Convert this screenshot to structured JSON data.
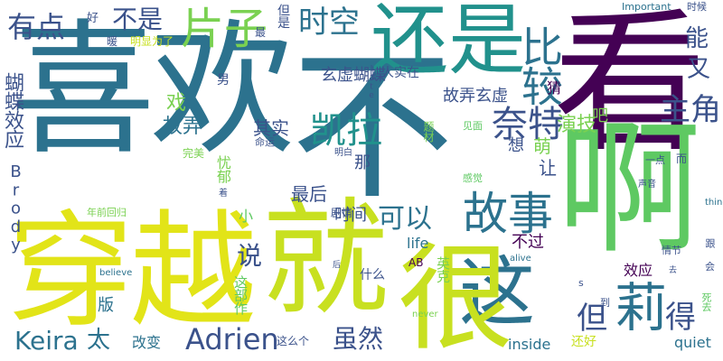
{
  "colors": {
    "background": "#ffffff",
    "palette": [
      "#440154",
      "#3b528b",
      "#2c728e",
      "#21918c",
      "#28ae80",
      "#5ec962",
      "#addc30",
      "#fde725"
    ]
  },
  "words": [
    {
      "text": "喜欢",
      "color": "#2c728e"
    },
    {
      "text": "不",
      "color": "#2c728e"
    },
    {
      "text": "看",
      "color": "#440154"
    },
    {
      "text": "就",
      "color": "#c8e020"
    },
    {
      "text": "穿越",
      "color": "#e2e418"
    },
    {
      "text": "啊",
      "color": "#5ec962"
    },
    {
      "text": "还是",
      "color": "#21918c"
    },
    {
      "text": "这",
      "color": "#2c728e"
    },
    {
      "text": "很",
      "color": "#c8e020"
    },
    {
      "text": "故事",
      "color": "#2c728e"
    },
    {
      "text": "比较",
      "color": "#2c728e"
    },
    {
      "text": "莉",
      "color": "#2c728e"
    },
    {
      "text": "有点",
      "color": "#3b528b"
    },
    {
      "text": "不是",
      "color": "#3b528b"
    },
    {
      "text": "片子",
      "color": "#7ad151"
    },
    {
      "text": "时空",
      "color": "#2c728e"
    },
    {
      "text": "奈特",
      "color": "#3b528b"
    },
    {
      "text": "凯拉",
      "color": "#21918c"
    },
    {
      "text": "Adrien",
      "color": "#3b528b"
    },
    {
      "text": "Keira",
      "color": "#2c728e"
    },
    {
      "text": "主角",
      "color": "#3b528b"
    },
    {
      "text": "可以",
      "color": "#2c728e"
    },
    {
      "text": "得",
      "color": "#3b528b"
    },
    {
      "text": "但",
      "color": "#3b528b"
    },
    {
      "text": "虽然",
      "color": "#3b528b"
    },
    {
      "text": "能",
      "color": "#3b528b"
    },
    {
      "text": "又",
      "color": "#3b528b"
    },
    {
      "text": "说",
      "color": "#3b528b"
    },
    {
      "text": "太",
      "color": "#2c728e"
    },
    {
      "text": "蝴蝶效应",
      "color": "#3b528b"
    },
    {
      "text": "故弄",
      "color": "#2c728e"
    },
    {
      "text": "戏",
      "color": "#7ad151"
    },
    {
      "text": "演技",
      "color": "#7ad151"
    },
    {
      "text": "最后",
      "color": "#3b528b"
    },
    {
      "text": "时间",
      "color": "#3b528b"
    },
    {
      "text": "其实",
      "color": "#3b528b"
    },
    {
      "text": "故弄玄虚",
      "color": "#3b528b"
    },
    {
      "text": "玄虚蝴蝶",
      "color": "#3b528b"
    },
    {
      "text": "让",
      "color": "#3b528b"
    },
    {
      "text": "想",
      "color": "#3b528b"
    },
    {
      "text": "那",
      "color": "#3b528b"
    },
    {
      "text": "萌",
      "color": "#7ad151"
    },
    {
      "text": "吧",
      "color": "#7ad151"
    },
    {
      "text": "猜",
      "color": "#440154"
    },
    {
      "text": "不过",
      "color": "#440154"
    },
    {
      "text": "效应",
      "color": "#440154"
    },
    {
      "text": "quiet",
      "color": "#2c728e"
    },
    {
      "text": "inside",
      "color": "#2c728e"
    },
    {
      "text": "改变",
      "color": "#2c728e"
    },
    {
      "text": "版",
      "color": "#2c728e"
    },
    {
      "text": "这部作",
      "color": "#5ec962"
    },
    {
      "text": "还好",
      "color": "#c8e020"
    },
    {
      "text": "什么",
      "color": "#3b528b"
    },
    {
      "text": "英克",
      "color": "#7ad151"
    },
    {
      "text": "life",
      "color": "#2c728e"
    },
    {
      "text": "AB",
      "color": "#440154"
    },
    {
      "text": "Brody",
      "color": "#3b528b"
    },
    {
      "text": "忧郁",
      "color": "#7ad151"
    },
    {
      "text": "男",
      "color": "#3b528b"
    },
    {
      "text": "人实在",
      "color": "#3b528b"
    },
    {
      "text": "剧情",
      "color": "#3b528b"
    },
    {
      "text": "小",
      "color": "#5ec962"
    },
    {
      "text": "这么个",
      "color": "#3b528b"
    },
    {
      "text": "命运",
      "color": "#3b528b"
    },
    {
      "text": "完美",
      "color": "#7ad151"
    },
    {
      "text": "年前回归",
      "color": "#7ad151"
    },
    {
      "text": "暖",
      "color": "#3b528b"
    },
    {
      "text": "明显为了",
      "color": "#c8e020"
    },
    {
      "text": "好",
      "color": "#3b528b"
    },
    {
      "text": "最",
      "color": "#3b528b"
    },
    {
      "text": "但是",
      "color": "#3b528b"
    },
    {
      "text": "Important",
      "color": "#2c728e"
    },
    {
      "text": "时候",
      "color": "#3b528b"
    },
    {
      "text": "题材",
      "color": "#7ad151"
    },
    {
      "text": "见面",
      "color": "#5ec962"
    },
    {
      "text": "感觉",
      "color": "#5ec962"
    },
    {
      "text": "明白",
      "color": "#3b528b"
    },
    {
      "text": "一点",
      "color": "#3b528b"
    },
    {
      "text": "而",
      "color": "#3b528b"
    },
    {
      "text": "声音",
      "color": "#3b528b"
    },
    {
      "text": "情节",
      "color": "#3b528b"
    },
    {
      "text": "跟",
      "color": "#3b528b"
    },
    {
      "text": "会",
      "color": "#3b528b"
    },
    {
      "text": "死去",
      "color": "#5ec962"
    },
    {
      "text": "到",
      "color": "#3b528b"
    },
    {
      "text": "s",
      "color": "#3b528b"
    },
    {
      "text": "never",
      "color": "#7ad151"
    },
    {
      "text": "alive",
      "color": "#2c728e"
    },
    {
      "text": "believe",
      "color": "#2c728e"
    },
    {
      "text": "thing",
      "color": "#2c728e"
    },
    {
      "text": "late",
      "color": "#3b528b"
    },
    {
      "text": "着",
      "color": "#3b528b"
    },
    {
      "text": "后",
      "color": "#3b528b"
    },
    {
      "text": "去",
      "color": "#3b528b"
    }
  ]
}
